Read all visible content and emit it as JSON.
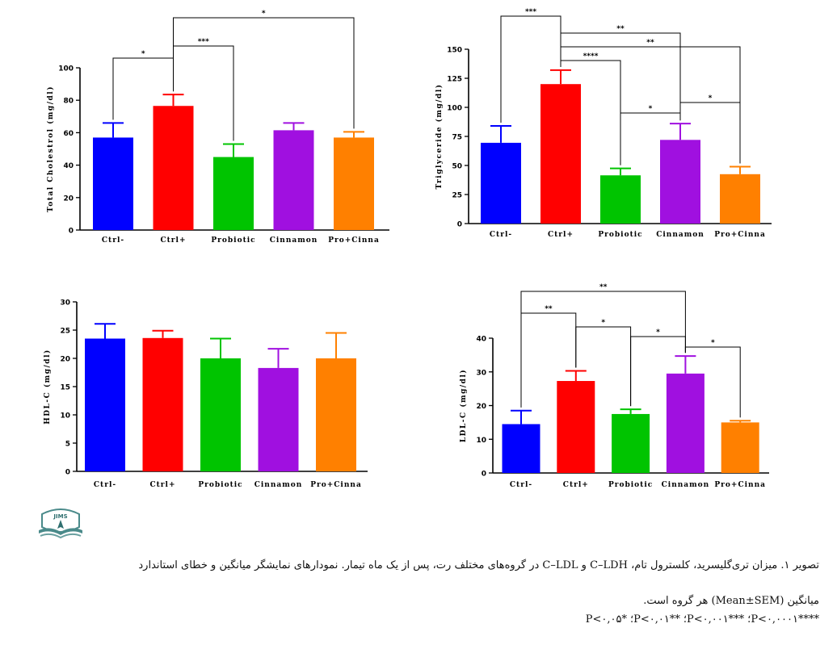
{
  "chart_data": [
    {
      "type": "bar",
      "ylabel": "Total Cholestrol (mg/dl)",
      "categories": [
        "Ctrl-",
        "Ctrl+",
        "Probiotic",
        "Cinnamon",
        "Pro+Cinna"
      ],
      "values": [
        57,
        76.5,
        45,
        61.5,
        57
      ],
      "errors": [
        9,
        7,
        8,
        4.5,
        3.5
      ],
      "ylim": [
        0,
        100
      ],
      "yticks": [
        0,
        20,
        40,
        60,
        80,
        100
      ],
      "significance": [
        {
          "from": 0,
          "to": 1,
          "label": "*"
        },
        {
          "from": 1,
          "to": 2,
          "label": "***"
        },
        {
          "from": 1,
          "to": 4,
          "label": "*"
        }
      ]
    },
    {
      "type": "bar",
      "ylabel": "Triglyceride (mg/dl)",
      "categories": [
        "Ctrl-",
        "Ctrl+",
        "Probiotic",
        "Cinnamon",
        "Pro+Cinna"
      ],
      "values": [
        69.5,
        120,
        41.5,
        72,
        42.5
      ],
      "errors": [
        14.5,
        12,
        6,
        14,
        6.5
      ],
      "ylim": [
        0,
        150
      ],
      "yticks": [
        0,
        25,
        50,
        75,
        100,
        125,
        150
      ],
      "significance": [
        {
          "from": 0,
          "to": 1,
          "label": "***"
        },
        {
          "from": 1,
          "to": 3,
          "label": "**"
        },
        {
          "from": 1,
          "to": 4,
          "label": "**"
        },
        {
          "from": 1,
          "to": 2,
          "label": "****"
        },
        {
          "from": 2,
          "to": 3,
          "label": "*"
        },
        {
          "from": 3,
          "to": 4,
          "label": "*"
        }
      ]
    },
    {
      "type": "bar",
      "ylabel": "HDL-C (mg/dl)",
      "categories": [
        "Ctrl-",
        "Ctrl+",
        "Probiotic",
        "Cinnamon",
        "Pro+Cinna"
      ],
      "values": [
        23.5,
        23.6,
        20,
        18.3,
        20
      ],
      "errors": [
        2.6,
        1.3,
        3.5,
        3.4,
        4.5
      ],
      "ylim": [
        0,
        30
      ],
      "yticks": [
        0,
        5,
        10,
        15,
        20,
        25,
        30
      ],
      "significance": []
    },
    {
      "type": "bar",
      "ylabel": "LDL-C (mg/dl)",
      "categories": [
        "Ctrl-",
        "Ctrl+",
        "Probiotic",
        "Cinnamon",
        "Pro+Cinna"
      ],
      "values": [
        14.5,
        27.3,
        17.5,
        29.5,
        15
      ],
      "errors": [
        4,
        3,
        1.4,
        5.2,
        0.5
      ],
      "ylim": [
        0,
        40
      ],
      "yticks": [
        0,
        10,
        20,
        30,
        40
      ],
      "significance": [
        {
          "from": 0,
          "to": 3,
          "label": "**"
        },
        {
          "from": 0,
          "to": 1,
          "label": "**"
        },
        {
          "from": 1,
          "to": 2,
          "label": "*"
        },
        {
          "from": 2,
          "to": 3,
          "label": "*"
        },
        {
          "from": 3,
          "to": 4,
          "label": "*"
        }
      ]
    }
  ],
  "colors": [
    "#0000ff",
    "#ff0000",
    "#00c400",
    "#a010e0",
    "#ff8000"
  ],
  "logo_text": "JIMS",
  "caption": {
    "line1": "تصویر ۱. میزان تری‌گلیسرید، کلسترول تام، C–LDH و C–LDL در گروه‌های مختلف رت، پس از یک ماه تیمار. نمودارهای نمایشگر میانگین و خطای استاندارد",
    "line2": "میانگین (Mean±SEM) هر گروه است.",
    "sig4": "****P<۰,۰۰۰۱؛",
    "sig3": "***P<۰,۰۰۱؛",
    "sig2": "**P<۰,۰۱؛",
    "sig1": "*P<۰,۰۵"
  }
}
